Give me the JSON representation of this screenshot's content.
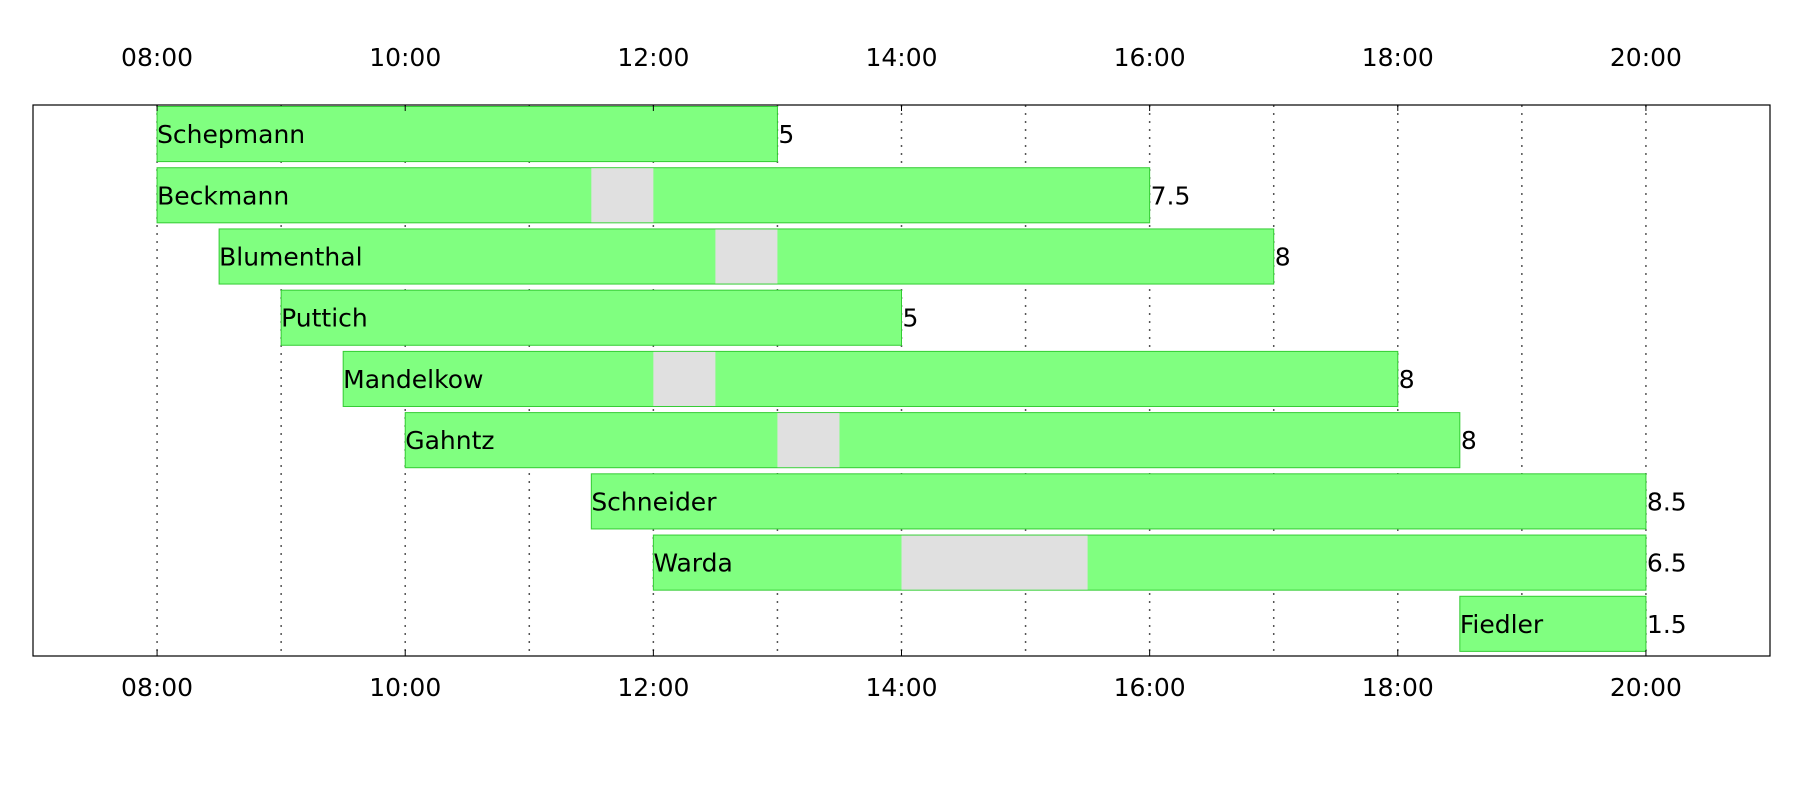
{
  "chart_data": {
    "type": "bar",
    "orientation": "horizontal-gantt",
    "title": "",
    "xlabel": "",
    "ylabel": "",
    "xlim": [
      "07:00",
      "21:00"
    ],
    "x_tick_labels": [
      "08:00",
      "10:00",
      "12:00",
      "14:00",
      "16:00",
      "18:00",
      "20:00"
    ],
    "grid": true,
    "colors": {
      "work": "#80ff80",
      "work_edge": "#33cc33",
      "break": "#e0e0e0"
    },
    "rows": [
      {
        "name": "Schepmann",
        "start": "08:00",
        "end": "13:00",
        "break": null,
        "hours": "5"
      },
      {
        "name": "Beckmann",
        "start": "08:00",
        "end": "16:00",
        "break": [
          "11:30",
          "12:00"
        ],
        "hours": "7.5"
      },
      {
        "name": "Blumenthal",
        "start": "08:30",
        "end": "17:00",
        "break": [
          "12:30",
          "13:00"
        ],
        "hours": "8"
      },
      {
        "name": "Puttich",
        "start": "09:00",
        "end": "14:00",
        "break": null,
        "hours": "5"
      },
      {
        "name": "Mandelkow",
        "start": "09:30",
        "end": "18:00",
        "break": [
          "12:00",
          "12:30"
        ],
        "hours": "8"
      },
      {
        "name": "Gahntz",
        "start": "10:00",
        "end": "18:30",
        "break": [
          "13:00",
          "13:30"
        ],
        "hours": "8"
      },
      {
        "name": "Schneider",
        "start": "11:30",
        "end": "20:00",
        "break": null,
        "hours": "8.5"
      },
      {
        "name": "Warda",
        "start": "12:00",
        "end": "20:00",
        "break": [
          "14:00",
          "15:30"
        ],
        "hours": "6.5"
      },
      {
        "name": "Fiedler",
        "start": "18:30",
        "end": "20:00",
        "break": null,
        "hours": "1.5"
      }
    ]
  }
}
